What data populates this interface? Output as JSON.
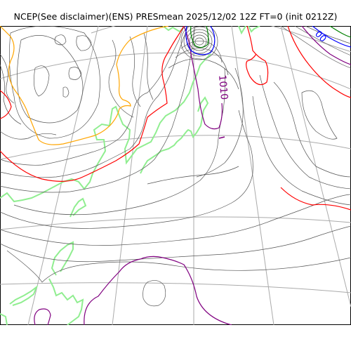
{
  "title": "NCEP(See disclaimer)(ENS) PRESmean 2025/12/02 12Z FT=0 (init 0212Z)",
  "contour_labels": [
    "1010",
    "00"
  ],
  "colors": {
    "grid": "#aaaaaa",
    "isobar": "#555555",
    "coast": "#90ee90",
    "orange": "#ffa500",
    "red": "#ff0000",
    "purple": "#800080",
    "blue": "#0000ff",
    "green": "#008000"
  }
}
